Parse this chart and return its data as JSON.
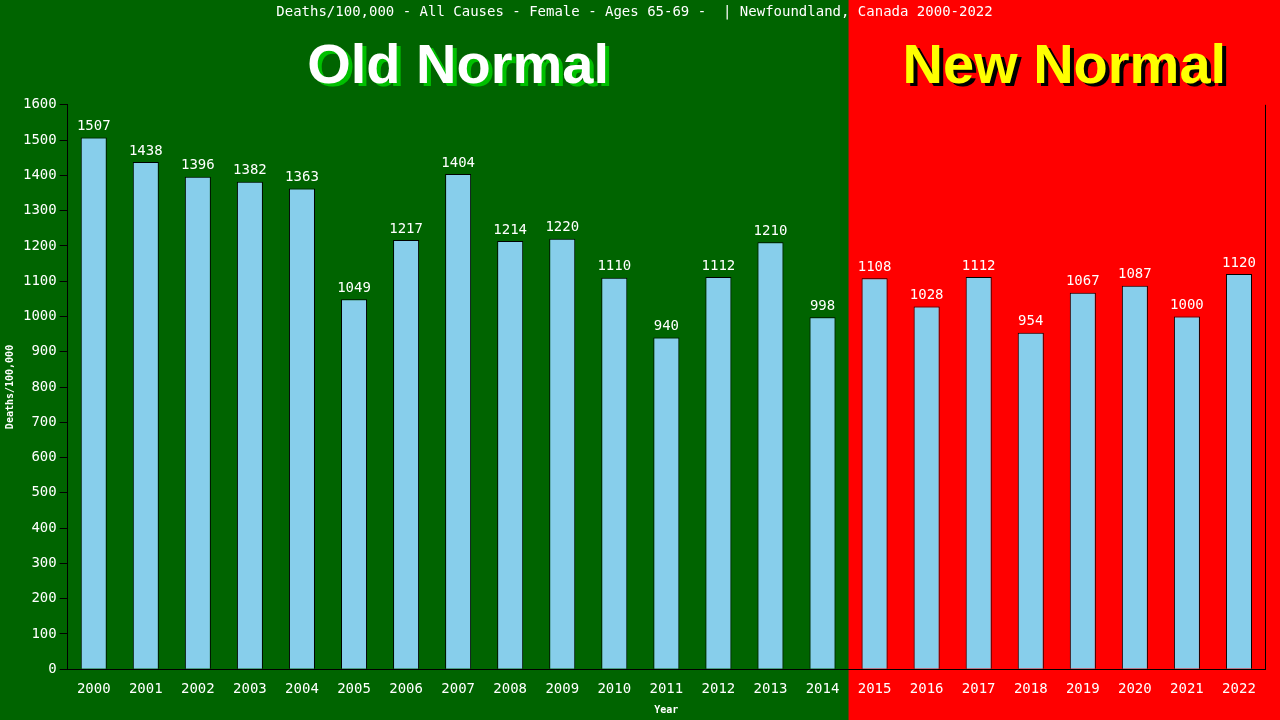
{
  "chart_data": {
    "type": "bar",
    "title": "Deaths/100,000 - All Causes - Female - Ages 65-69 -  | Newfoundland, Canada 2000-2022",
    "xlabel": "Year",
    "ylabel": "Deaths/100,000",
    "categories": [
      "2000",
      "2001",
      "2002",
      "2003",
      "2004",
      "2005",
      "2006",
      "2007",
      "2008",
      "2009",
      "2010",
      "2011",
      "2012",
      "2013",
      "2014",
      "2015",
      "2016",
      "2017",
      "2018",
      "2019",
      "2020",
      "2021",
      "2022"
    ],
    "values": [
      1507,
      1438,
      1396,
      1382,
      1363,
      1049,
      1217,
      1404,
      1214,
      1220,
      1110,
      940,
      1112,
      1210,
      998,
      1108,
      1028,
      1112,
      954,
      1067,
      1087,
      1000,
      1120
    ],
    "color": "#87ceeb",
    "data_labels": true,
    "ylim": [
      0,
      1600
    ],
    "yticks": [
      0,
      100,
      200,
      300,
      400,
      500,
      600,
      700,
      800,
      900,
      1000,
      1100,
      1200,
      1300,
      1400,
      1500,
      1600
    ],
    "annotations": [
      "Old Normal"
    ],
    "bands": [
      {
        "axis": "x",
        "from": "2015",
        "to": "2022",
        "label": "New Normal",
        "color": "#ff0000"
      }
    ]
  }
}
